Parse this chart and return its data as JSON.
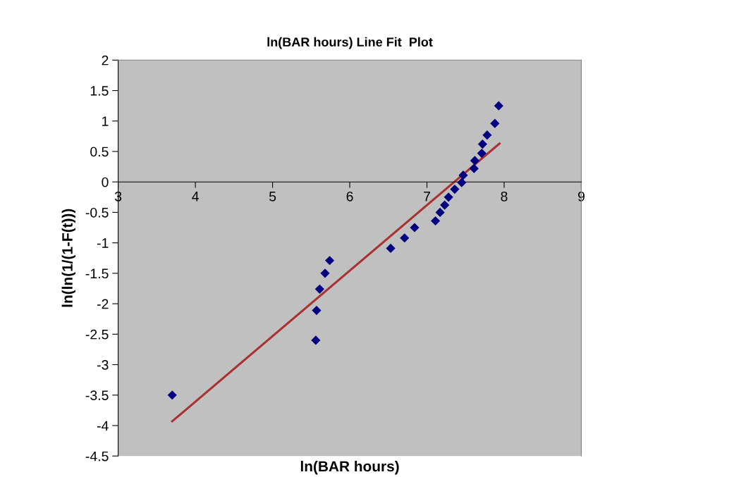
{
  "chart_data": {
    "type": "scatter",
    "title": "ln(BAR hours) Line Fit  Plot",
    "xlabel": "ln(BAR hours)",
    "ylabel": "ln(ln(1/(1-F(t)))",
    "xlim": [
      3,
      9
    ],
    "xticks": [
      3,
      4,
      5,
      6,
      7,
      8,
      9
    ],
    "ylim": [
      -4.5,
      2
    ],
    "yticks": [
      -4.5,
      -4,
      -3.5,
      -3,
      -2.5,
      -2,
      -1.5,
      -1,
      -0.5,
      0,
      0.5,
      1,
      1.5,
      2
    ],
    "grid": false,
    "legend": false,
    "series": [
      {
        "marker": "diamond",
        "color": "#000080",
        "x": [
          3.7,
          5.56,
          5.57,
          5.61,
          5.68,
          5.74,
          6.53,
          6.71,
          6.84,
          7.11,
          7.17,
          7.23,
          7.28,
          7.36,
          7.45,
          7.47,
          7.61,
          7.62,
          7.71,
          7.72,
          7.78,
          7.88,
          7.93
        ],
        "values": [
          -3.5,
          -2.6,
          -2.11,
          -1.76,
          -1.5,
          -1.29,
          -1.09,
          -0.92,
          -0.75,
          -0.64,
          -0.5,
          -0.38,
          -0.25,
          -0.12,
          -0.01,
          0.11,
          0.22,
          0.35,
          0.47,
          0.62,
          0.77,
          0.96,
          1.25
        ]
      },
      {
        "type": "line",
        "color": "#a83232",
        "x": [
          3.7,
          7.94
        ],
        "values": [
          -3.93,
          0.63
        ]
      }
    ]
  }
}
